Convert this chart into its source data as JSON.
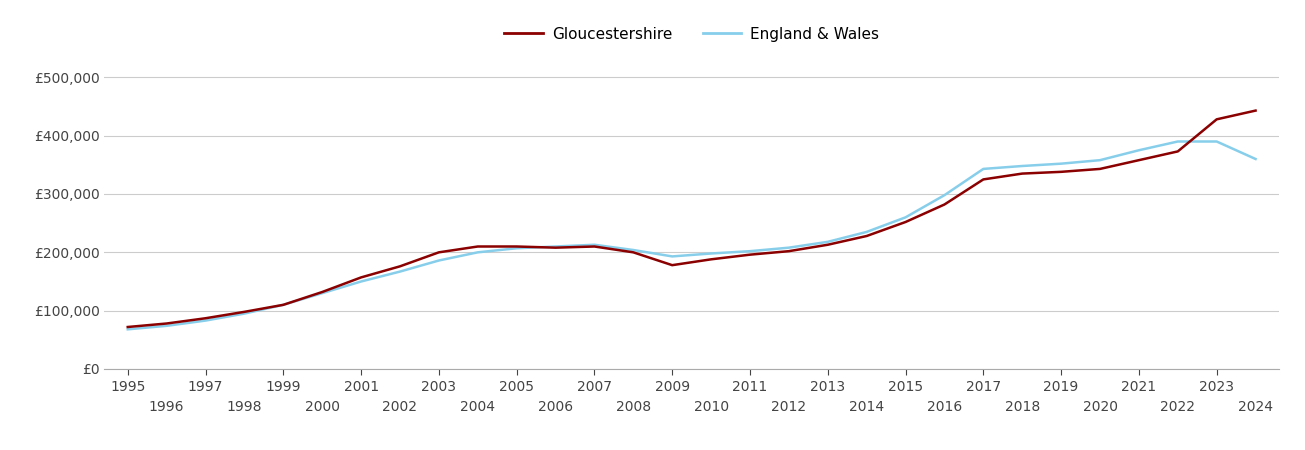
{
  "gloucestershire": {
    "years": [
      1995,
      1996,
      1997,
      1998,
      1999,
      2000,
      2001,
      2002,
      2003,
      2004,
      2005,
      2006,
      2007,
      2008,
      2009,
      2010,
      2011,
      2012,
      2013,
      2014,
      2015,
      2016,
      2017,
      2018,
      2019,
      2020,
      2021,
      2022,
      2023,
      2024
    ],
    "values": [
      72000,
      78000,
      87000,
      98000,
      110000,
      132000,
      157000,
      176000,
      200000,
      210000,
      210000,
      208000,
      210000,
      200000,
      178000,
      188000,
      196000,
      202000,
      213000,
      228000,
      252000,
      282000,
      325000,
      335000,
      338000,
      343000,
      358000,
      373000,
      428000,
      443000
    ]
  },
  "england_wales": {
    "years": [
      1995,
      1996,
      1997,
      1998,
      1999,
      2000,
      2001,
      2002,
      2003,
      2004,
      2005,
      2006,
      2007,
      2008,
      2009,
      2010,
      2011,
      2012,
      2013,
      2014,
      2015,
      2016,
      2017,
      2018,
      2019,
      2020,
      2021,
      2022,
      2023,
      2024
    ],
    "values": [
      68000,
      74000,
      83000,
      95000,
      110000,
      130000,
      150000,
      167000,
      186000,
      200000,
      207000,
      210000,
      213000,
      204000,
      193000,
      198000,
      202000,
      208000,
      218000,
      235000,
      260000,
      298000,
      343000,
      348000,
      352000,
      358000,
      375000,
      390000,
      390000,
      360000
    ]
  },
  "gloucestershire_color": "#8b0000",
  "england_wales_color": "#87CEEB",
  "background_color": "#ffffff",
  "grid_color": "#cccccc",
  "ylim": [
    0,
    540000
  ],
  "yticks": [
    0,
    100000,
    200000,
    300000,
    400000,
    500000
  ],
  "legend_gloucestershire": "Gloucestershire",
  "legend_england_wales": "England & Wales",
  "line_width": 1.8,
  "odd_years": [
    1995,
    1997,
    1999,
    2001,
    2003,
    2005,
    2007,
    2009,
    2011,
    2013,
    2015,
    2017,
    2019,
    2021,
    2023
  ],
  "even_years": [
    1996,
    1998,
    2000,
    2002,
    2004,
    2006,
    2008,
    2010,
    2012,
    2014,
    2016,
    2018,
    2020,
    2022,
    2024
  ],
  "xlim": [
    1994.4,
    2024.6
  ]
}
